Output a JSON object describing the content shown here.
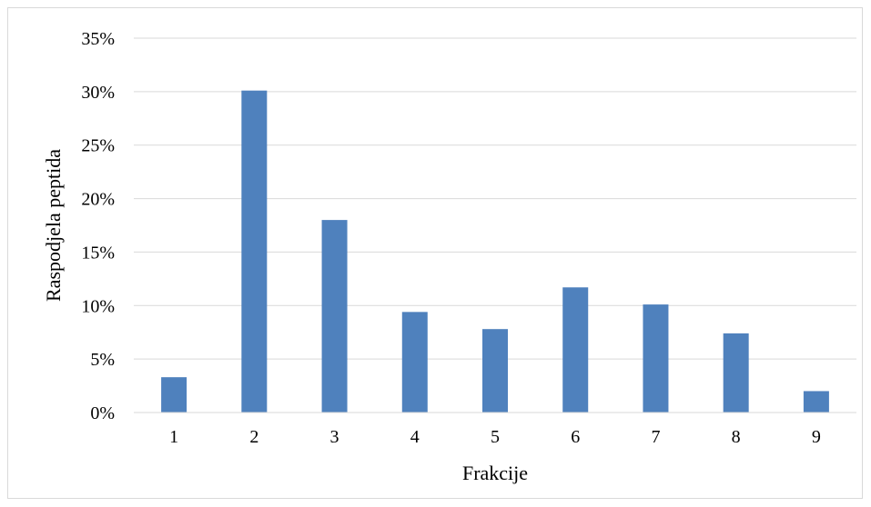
{
  "chart_data": {
    "type": "bar",
    "categories": [
      "1",
      "2",
      "3",
      "4",
      "5",
      "6",
      "7",
      "8",
      "9"
    ],
    "values": [
      3.3,
      30.1,
      18.0,
      9.4,
      7.8,
      11.7,
      10.1,
      7.4,
      2.0
    ],
    "xlabel": "Frakcije",
    "ylabel": "Raspodjela peptida",
    "ylim": [
      0,
      35
    ],
    "yticks": [
      "0%",
      "5%",
      "10%",
      "15%",
      "20%",
      "25%",
      "30%",
      "35%"
    ],
    "grid": true,
    "legend": "none",
    "bar_color": "#4f81bd",
    "grid_color": "#d9d9d9"
  }
}
